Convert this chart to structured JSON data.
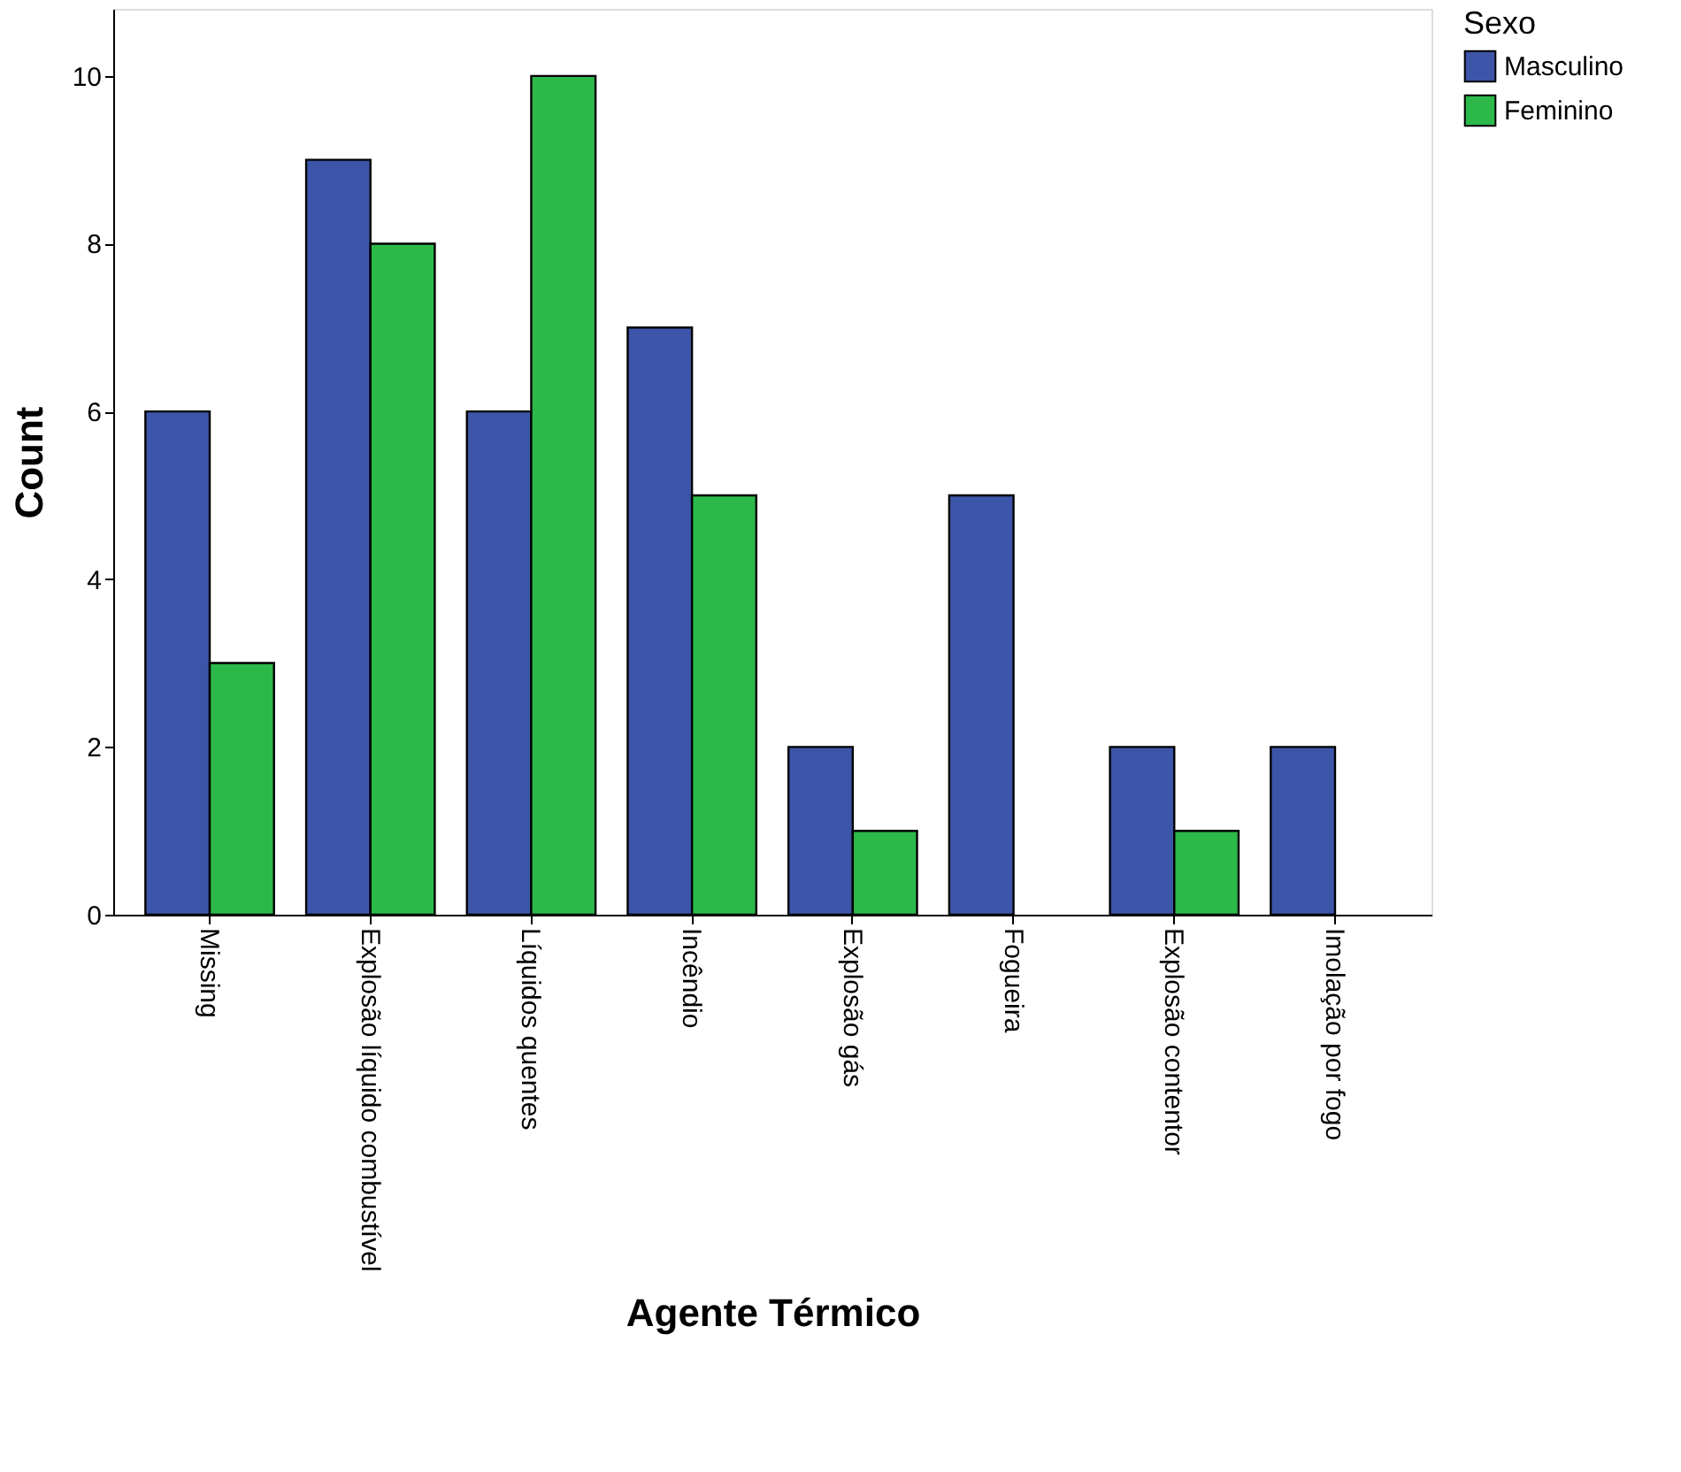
{
  "chart_data": {
    "type": "bar",
    "xlabel": "Agente Térmico",
    "ylabel": "Count",
    "legend_title": "Sexo",
    "categories": [
      "Missing",
      "Explosão líquido combustível",
      "Líquidos quentes",
      "Incêndio",
      "Explosão gás",
      "Fogueira",
      "Explosão contentor",
      "Imolação por fogo"
    ],
    "series": [
      {
        "name": "Masculino",
        "color": "#3d55a8",
        "values": [
          6,
          9,
          6,
          7,
          2,
          5,
          2,
          2
        ]
      },
      {
        "name": "Feminino",
        "color": "#2db84a",
        "values": [
          3,
          8,
          10,
          5,
          1,
          null,
          1,
          null
        ]
      }
    ],
    "ylim": [
      0,
      10.8
    ],
    "yticks": [
      0,
      2,
      4,
      6,
      8,
      10
    ],
    "grid": false,
    "legend": "top right"
  }
}
